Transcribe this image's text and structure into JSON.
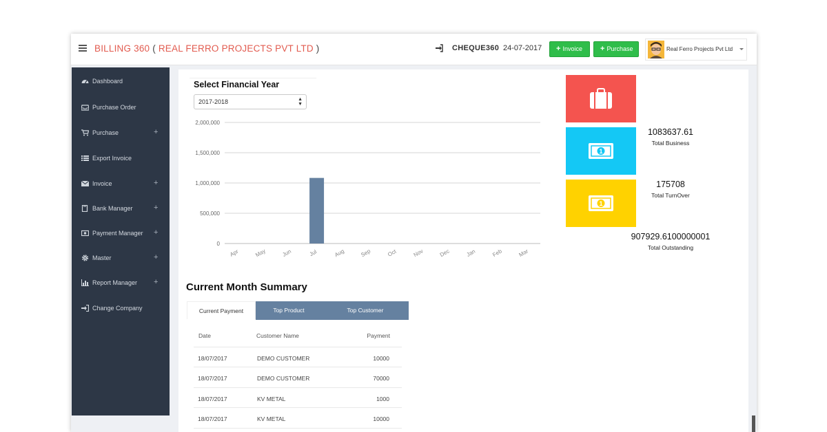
{
  "header": {
    "app_name": "BILLING 360",
    "open_paren": "(",
    "company_in_title": "REAL FERRO PROJECTS PVT LTD",
    "close_paren": ")",
    "company_code": "CHEQUE360",
    "date": "24-07-2017",
    "invoice_button": "Invoice",
    "purchase_button": "Purchase",
    "user_company": "Real Ferro Projects Pvt Ltd"
  },
  "sidebar": {
    "items": [
      {
        "label": "Dashboard",
        "icon": "dashboard-icon",
        "expandable": false
      },
      {
        "label": "Purchase Order",
        "icon": "inbox-icon",
        "expandable": false
      },
      {
        "label": "Purchase",
        "icon": "cart-icon",
        "expandable": true
      },
      {
        "label": "Export Invoice",
        "icon": "list-icon",
        "expandable": false
      },
      {
        "label": "Invoice",
        "icon": "envelope-icon",
        "expandable": true
      },
      {
        "label": "Bank Manager",
        "icon": "book-icon",
        "expandable": true
      },
      {
        "label": "Payment Manager",
        "icon": "money-icon",
        "expandable": true
      },
      {
        "label": "Master",
        "icon": "gear-icon",
        "expandable": true
      },
      {
        "label": "Report Manager",
        "icon": "bar-chart-icon",
        "expandable": true
      },
      {
        "label": "Change Company",
        "icon": "sign-in-icon",
        "expandable": false
      }
    ],
    "plus_symbol": "+"
  },
  "financial_year": {
    "heading": "Select Financial Year",
    "selected": "2017-2018"
  },
  "chart_data": {
    "type": "bar",
    "categories": [
      "Apr",
      "May",
      "Jun",
      "Jul",
      "Aug",
      "Sep",
      "Oct",
      "Nov",
      "Dec",
      "Jan",
      "Feb",
      "Mar"
    ],
    "values": [
      0,
      0,
      0,
      1083637.61,
      0,
      0,
      0,
      0,
      0,
      0,
      0,
      0
    ],
    "y_ticks": [
      "0",
      "500,000",
      "1,000,000",
      "1,500,000",
      "2,000,000"
    ],
    "ylim": [
      0,
      2000000
    ],
    "grid": true,
    "bar_color": "#6581a0"
  },
  "kpis": [
    {
      "value": "1083637.61",
      "label": "Total Business",
      "color": "#f4544f",
      "icon": "briefcase-icon"
    },
    {
      "value": "175708",
      "label": "Total TurnOver",
      "color": "#14c8f5",
      "icon": "money-icon"
    },
    {
      "value": "907929.6100000001",
      "label": "Total Outstanding",
      "color": "#ffd200",
      "icon": "money-icon"
    }
  ],
  "summary": {
    "title": "Current Month Summary",
    "tabs": [
      "Current Payment",
      "Top Product",
      "Top Customer"
    ],
    "columns": [
      "Date",
      "Customer Name",
      "Payment"
    ],
    "rows": [
      [
        "18/07/2017",
        "DEMO CUSTOMER",
        "10000"
      ],
      [
        "18/07/2017",
        "DEMO CUSTOMER",
        "70000"
      ],
      [
        "18/07/2017",
        "KV METAL",
        "1000"
      ],
      [
        "18/07/2017",
        "KV METAL",
        "10000"
      ]
    ]
  }
}
